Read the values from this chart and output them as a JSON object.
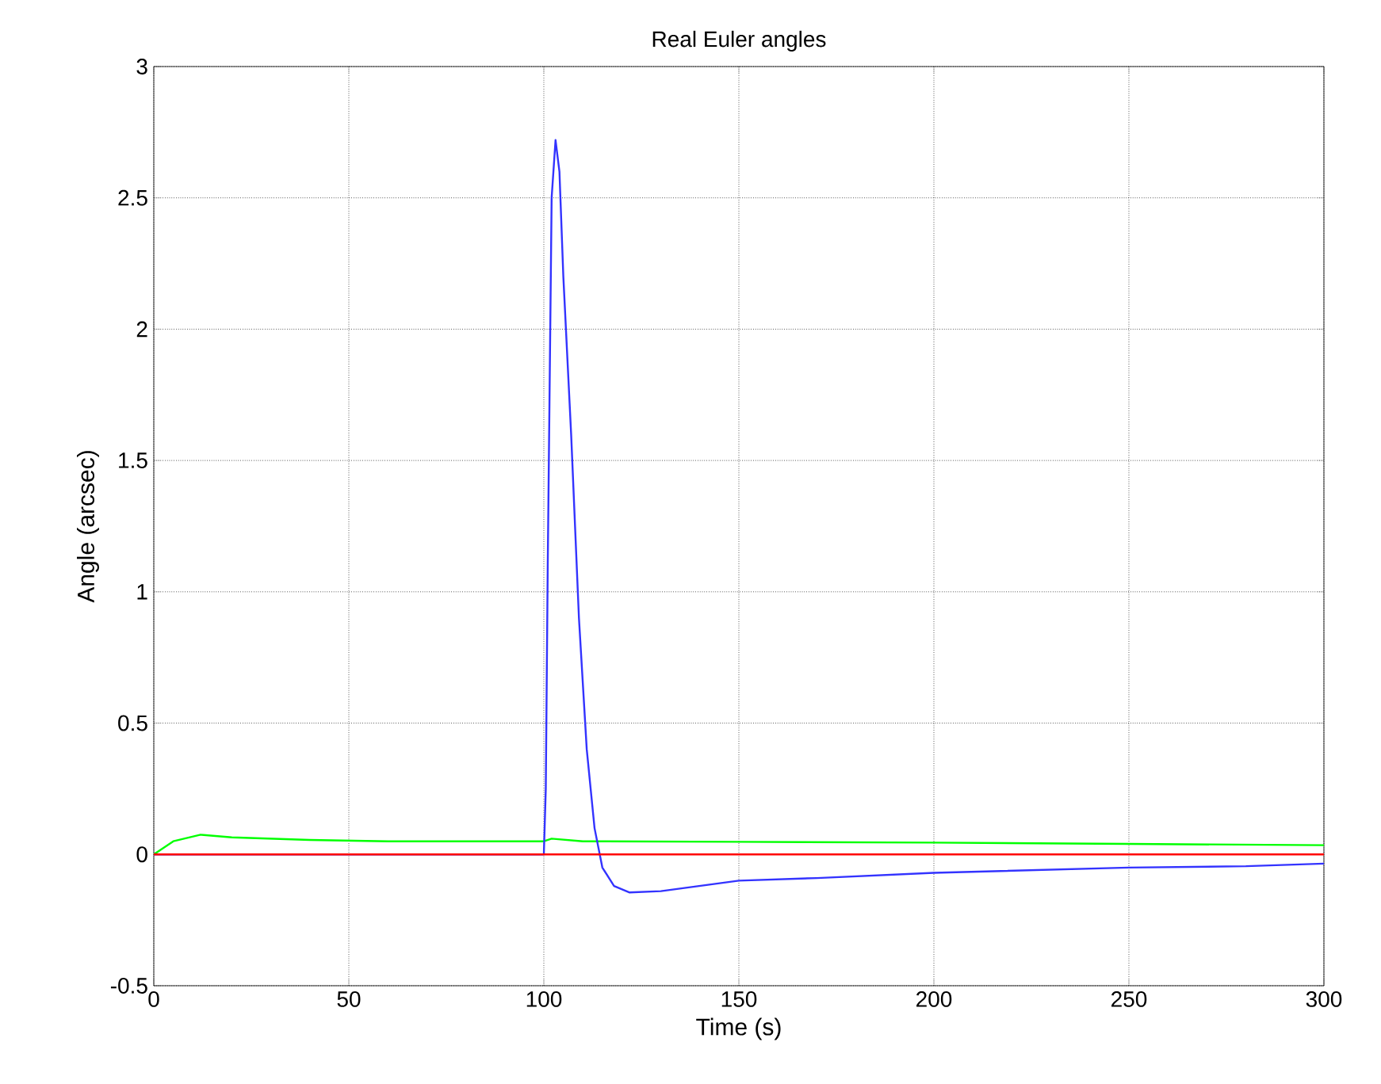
{
  "chart_data": {
    "type": "line",
    "title": "Real Euler angles",
    "xlabel": "Time (s)",
    "ylabel": "Angle (arcsec)",
    "xlim": [
      0,
      300
    ],
    "ylim": [
      -0.5,
      3
    ],
    "xticks": [
      0,
      50,
      100,
      150,
      200,
      250,
      300
    ],
    "yticks": [
      -0.5,
      0,
      0.5,
      1,
      1.5,
      2,
      2.5,
      3
    ],
    "grid": true,
    "series": [
      {
        "color": "#00ff00",
        "x": [
          0,
          5,
          12,
          20,
          40,
          60,
          100,
          102,
          110,
          150,
          200,
          250,
          300
        ],
        "values": [
          0,
          0.05,
          0.075,
          0.065,
          0.055,
          0.05,
          0.05,
          0.06,
          0.05,
          0.048,
          0.045,
          0.04,
          0.035
        ]
      },
      {
        "color": "#3333ff",
        "x": [
          0,
          100,
          100.5,
          101,
          102,
          103,
          104,
          105,
          107,
          109,
          111,
          113,
          115,
          118,
          122,
          130,
          140,
          150,
          170,
          200,
          250,
          280,
          300
        ],
        "values": [
          0,
          0,
          0.25,
          1.1,
          2.5,
          2.72,
          2.6,
          2.2,
          1.6,
          0.9,
          0.4,
          0.1,
          -0.05,
          -0.12,
          -0.145,
          -0.14,
          -0.12,
          -0.1,
          -0.09,
          -0.07,
          -0.05,
          -0.045,
          -0.035
        ]
      },
      {
        "color": "#ff0000",
        "x": [
          0,
          300
        ],
        "values": [
          0,
          0
        ]
      }
    ]
  }
}
